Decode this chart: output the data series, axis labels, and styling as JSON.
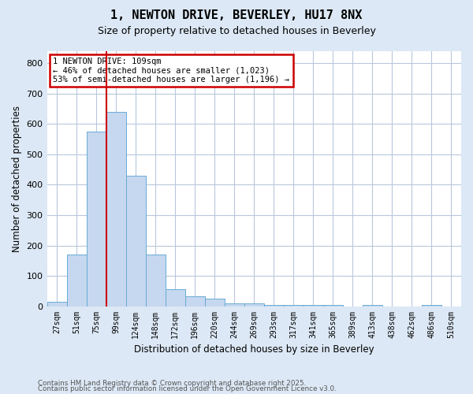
{
  "title": "1, NEWTON DRIVE, BEVERLEY, HU17 8NX",
  "subtitle": "Size of property relative to detached houses in Beverley",
  "xlabel": "Distribution of detached houses by size in Beverley",
  "ylabel": "Number of detached properties",
  "footnote1": "Contains HM Land Registry data © Crown copyright and database right 2025.",
  "footnote2": "Contains public sector information licensed under the Open Government Licence v3.0.",
  "bins": [
    "27sqm",
    "51sqm",
    "75sqm",
    "99sqm",
    "124sqm",
    "148sqm",
    "172sqm",
    "196sqm",
    "220sqm",
    "244sqm",
    "269sqm",
    "293sqm",
    "317sqm",
    "341sqm",
    "365sqm",
    "389sqm",
    "413sqm",
    "438sqm",
    "462sqm",
    "486sqm",
    "510sqm"
  ],
  "values": [
    15,
    170,
    575,
    640,
    430,
    170,
    55,
    32,
    25,
    10,
    8,
    4,
    5,
    5,
    4,
    0,
    3,
    0,
    0,
    5,
    0
  ],
  "bar_color": "#c5d8ef",
  "bar_edge_color": "#6aaad4",
  "vline_color": "#cc0000",
  "vline_x": 2.5,
  "ylim": [
    0,
    840
  ],
  "yticks": [
    0,
    100,
    200,
    300,
    400,
    500,
    600,
    700,
    800
  ],
  "annotation_text": "1 NEWTON DRIVE: 109sqm\n← 46% of detached houses are smaller (1,023)\n53% of semi-detached houses are larger (1,196) →",
  "annotation_box_facecolor": "#ffffff",
  "annotation_box_edgecolor": "#cc0000",
  "bg_color": "#dce8f5",
  "plot_bg_color": "#ffffff",
  "grid_color": "#b8c8dc"
}
